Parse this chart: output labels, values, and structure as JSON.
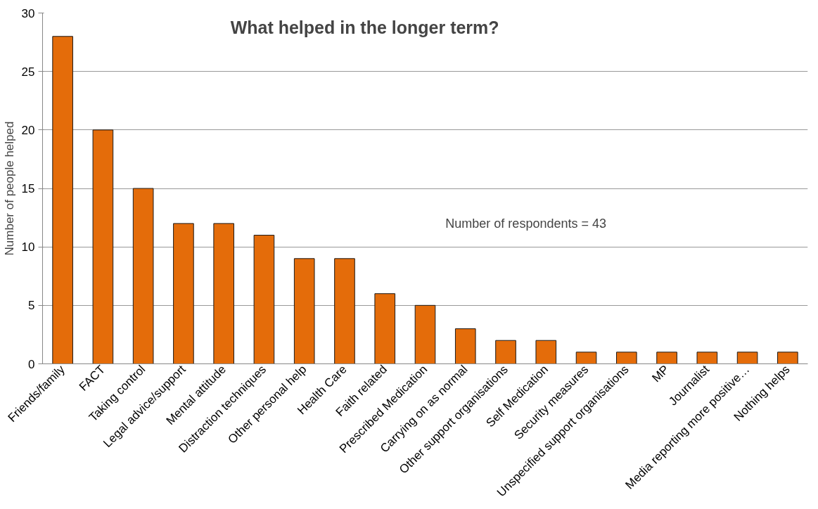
{
  "chart_data": {
    "type": "bar",
    "title": "What helped in the longer term?",
    "ylabel": "Number of people helped",
    "categories": [
      "Friends/family",
      "FACT",
      "Taking control",
      "Legal advice/support",
      "Mental attitude",
      "Distraction techniques",
      "Other personal help",
      "Health Care",
      "Faith related",
      "Prescribed Medication",
      "Carrying on as normal",
      "Other support organisations",
      "Self Medication",
      "Security measures",
      "Unspecified support organisations",
      "MP",
      "Journalist",
      "Media reporting more positive…",
      "Nothing helps"
    ],
    "values": [
      28,
      20,
      15,
      12,
      12,
      11,
      9,
      9,
      6,
      5,
      3,
      2,
      2,
      1,
      1,
      1,
      1,
      1,
      1
    ],
    "color": "#e46c0a",
    "ylim": [
      0,
      30
    ],
    "yticks": [
      0,
      5,
      10,
      15,
      20,
      25,
      30
    ],
    "grid": "y",
    "annotations": [
      "Number of respondents = 43"
    ]
  }
}
